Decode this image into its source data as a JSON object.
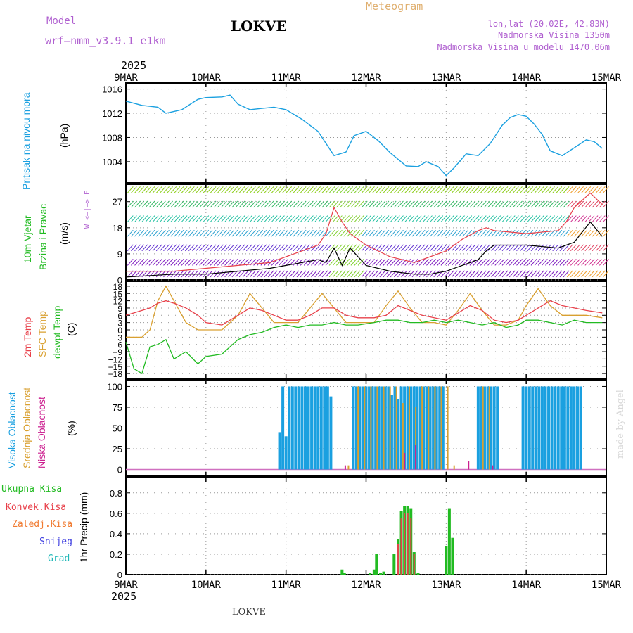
{
  "header": {
    "model_label": "Model",
    "model_name": "wrf–nmm_v3.9.1 e1km",
    "station": "LOKVE",
    "meteogram": "Meteogram",
    "lonlat": "lon,lat (20.02E, 42.83N)",
    "elevation": "Nadmorska Visina 1350m",
    "model_elevation": "Nadmorska Visina u modelu 1470.06m",
    "year": "2025",
    "footer_station": "LOKVE",
    "credit": "made by Angel"
  },
  "colors": {
    "pressure": "#1aa0e0",
    "temp2m": "#e8404a",
    "sfc": "#d9a030",
    "dewpt": "#22bb22",
    "cloud_high": "#1aa0e0",
    "cloud_mid": "#d9a030",
    "cloud_low": "#cc2090",
    "precip_total": "#22bb22",
    "precip_conv": "#e8404a",
    "precip_frz": "#f07a30",
    "snow": "#4040e0",
    "grad": "#20b8b8"
  },
  "days": [
    "9MAR",
    "10MAR",
    "11MAR",
    "12MAR",
    "13MAR",
    "14MAR",
    "15MAR"
  ],
  "panels": {
    "pressure": {
      "label": "Pritisak na nivou mora",
      "unit": "(hPa)",
      "ticks": [
        1004,
        1008,
        1012,
        1016
      ]
    },
    "wind": {
      "label1": "10m Vjetar",
      "label2": "Brzina i Pravac",
      "unit": "(m/s)",
      "ticks": [
        0,
        9,
        18,
        27
      ],
      "compass": "W <–|–> E"
    },
    "temp": {
      "label1": "2m Temp",
      "label2": "SFC Temp",
      "label3": "dewpt Temp",
      "unit": "(C)",
      "ticks": [
        -18,
        -15,
        -12,
        -9,
        -6,
        -3,
        0,
        3,
        6,
        9,
        12,
        15,
        18
      ]
    },
    "cloud": {
      "label1": "Visoka Oblacnost",
      "label2": "Srednja Oblacnost",
      "label3": "Niska Oblacnost",
      "unit": "(%)",
      "ticks": [
        0,
        25,
        50,
        75,
        100
      ]
    },
    "precip": {
      "legend": [
        "Ukupna Kisa",
        "Konvek.Kisa",
        "Zaledj.Kisa",
        "Snijeg",
        "Grad"
      ],
      "unit": "1hr Precip (mm)",
      "ticks": [
        0,
        0.2,
        0.4,
        0.6,
        0.8
      ]
    }
  },
  "chart_data": [
    {
      "type": "line",
      "title": "Pritisak na nivou mora",
      "ylabel": "(hPa)",
      "ylim": [
        1000.5,
        1017
      ],
      "x_unit": "days since 9MAR 00UTC",
      "x": [
        0,
        0.2,
        0.4,
        0.5,
        0.7,
        0.9,
        1.0,
        1.2,
        1.3,
        1.4,
        1.55,
        1.7,
        1.85,
        2.0,
        2.2,
        2.4,
        2.6,
        2.75,
        2.85,
        3.0,
        3.15,
        3.3,
        3.5,
        3.65,
        3.75,
        3.9,
        4.0,
        4.1,
        4.25,
        4.4,
        4.55,
        4.7,
        4.8,
        4.9,
        5.0,
        5.1,
        5.2,
        5.3,
        5.45,
        5.6,
        5.75,
        5.85,
        5.95
      ],
      "values": [
        1014,
        1013.3,
        1013,
        1012,
        1012.6,
        1014.3,
        1014.6,
        1014.7,
        1015,
        1013.5,
        1012.6,
        1012.8,
        1013,
        1012.6,
        1011,
        1009,
        1005,
        1005.6,
        1008.3,
        1009,
        1007.5,
        1005.5,
        1003.3,
        1003.2,
        1004,
        1003.2,
        1001.7,
        1003,
        1005.3,
        1005,
        1007,
        1010,
        1011.3,
        1011.8,
        1011.5,
        1010.2,
        1008.5,
        1005.8,
        1005,
        1006.3,
        1007.6,
        1007.3,
        1006.2
      ]
    },
    {
      "type": "line",
      "title": "10m Vjetar Brzina i Pravac",
      "ylabel": "(m/s)",
      "ylim": [
        0,
        33
      ],
      "x": [
        0,
        0.3,
        0.6,
        1.0,
        1.4,
        1.8,
        2.0,
        2.2,
        2.4,
        2.5,
        2.6,
        2.7,
        2.8,
        3.0,
        3.3,
        3.6,
        3.8,
        4.0,
        4.2,
        4.4,
        4.5,
        4.6,
        5.0,
        5.4,
        5.5,
        5.6,
        5.8,
        5.95
      ],
      "series": [
        {
          "name": "",
          "values": [
            1,
            1.5,
            2,
            2,
            3,
            4,
            5,
            6,
            7,
            6,
            11,
            5,
            11,
            5,
            3,
            2,
            2,
            3,
            5,
            7,
            10,
            12,
            12,
            11,
            12,
            13,
            20,
            15
          ]
        },
        {
          "name": "",
          "values": [
            3,
            3,
            3,
            4,
            5,
            6,
            8,
            10,
            12,
            16,
            25,
            20,
            16,
            12,
            8,
            6,
            8,
            10,
            14,
            17,
            18,
            17,
            16,
            17,
            20,
            25,
            30,
            26
          ]
        }
      ]
    },
    {
      "type": "line",
      "title": "2m Temp / SFC Temp / dewpt Temp",
      "ylabel": "(C)",
      "ylim": [
        -20,
        20
      ],
      "x": [
        0,
        0.1,
        0.2,
        0.3,
        0.4,
        0.5,
        0.6,
        0.75,
        0.9,
        1.0,
        1.2,
        1.4,
        1.55,
        1.7,
        1.85,
        2.0,
        2.15,
        2.3,
        2.45,
        2.6,
        2.75,
        2.9,
        3.1,
        3.25,
        3.4,
        3.55,
        3.7,
        3.85,
        4.0,
        4.15,
        4.3,
        4.45,
        4.6,
        4.75,
        4.9,
        5.0,
        5.15,
        5.3,
        5.45,
        5.6,
        5.75,
        5.95
      ],
      "series": [
        {
          "name": "2m Temp",
          "values": [
            6,
            7,
            8,
            9,
            11,
            12,
            11,
            9,
            6,
            3,
            2,
            6,
            9,
            8,
            6,
            4,
            4,
            6,
            9,
            9,
            6,
            5,
            5,
            6,
            10,
            8,
            6,
            5,
            4,
            7,
            10,
            8,
            4,
            3,
            4,
            6,
            9,
            12,
            10,
            9,
            8,
            7
          ]
        },
        {
          "name": "SFC Temp",
          "values": [
            -3,
            -3,
            -3,
            0,
            12,
            18,
            12,
            3,
            0,
            0,
            0,
            6,
            15,
            9,
            3,
            3,
            3,
            9,
            15,
            9,
            3,
            3,
            3,
            10,
            16,
            9,
            3,
            3,
            2,
            8,
            15,
            8,
            2,
            2,
            4,
            10,
            17,
            10,
            6,
            6,
            6,
            5
          ]
        },
        {
          "name": "dewpt Temp",
          "values": [
            -5,
            -16,
            -18,
            -7,
            -6,
            -4,
            -12,
            -9,
            -14,
            -11,
            -10,
            -4,
            -2,
            -1,
            1,
            2,
            1,
            2,
            2,
            3,
            2,
            2,
            3,
            4,
            4,
            3,
            3,
            4,
            3,
            4,
            3,
            2,
            3,
            1,
            2,
            4,
            4,
            3,
            2,
            4,
            3,
            3
          ]
        }
      ]
    },
    {
      "type": "bar",
      "title": "Visoka / Srednja / Niska Oblacnost",
      "ylabel": "(%)",
      "ylim": [
        0,
        100
      ],
      "series": [
        {
          "name": "Visoka Oblacnost",
          "x": [
            1.92,
            1.96,
            2.0,
            2.04,
            2.08,
            2.12,
            2.16,
            2.2,
            2.24,
            2.28,
            2.32,
            2.36,
            2.4,
            2.44,
            2.48,
            2.52,
            2.56,
            2.84,
            2.88,
            2.92,
            2.96,
            3.0,
            3.04,
            3.08,
            3.12,
            3.16,
            3.2,
            3.24,
            3.28,
            3.32,
            3.36,
            3.4,
            3.44,
            3.48,
            3.52,
            3.56,
            3.6,
            3.64,
            3.68,
            3.72,
            3.76,
            3.8,
            3.84,
            3.88,
            3.92,
            3.96,
            4.4,
            4.44,
            4.48,
            4.52,
            4.56,
            4.6,
            4.64,
            4.96,
            5.0,
            5.04,
            5.08,
            5.12,
            5.16,
            5.2,
            5.24,
            5.28,
            5.32,
            5.36,
            5.4,
            5.44,
            5.48,
            5.52,
            5.56,
            5.6,
            5.64,
            5.68
          ],
          "values": [
            45,
            100,
            40,
            100,
            100,
            100,
            100,
            100,
            100,
            100,
            100,
            100,
            100,
            100,
            100,
            100,
            88,
            100,
            100,
            100,
            100,
            100,
            100,
            100,
            100,
            100,
            100,
            100,
            100,
            90,
            100,
            85,
            100,
            100,
            100,
            100,
            100,
            100,
            100,
            100,
            100,
            100,
            100,
            100,
            100,
            100,
            100,
            100,
            100,
            100,
            100,
            100,
            100,
            100,
            100,
            100,
            100,
            100,
            100,
            100,
            100,
            100,
            100,
            100,
            100,
            100,
            100,
            100,
            100,
            100,
            100,
            100
          ]
        },
        {
          "name": "Srednja Oblacnost",
          "x": [
            2.78,
            2.9,
            2.98,
            3.06,
            3.14,
            3.22,
            3.3,
            3.38,
            3.46,
            3.54,
            3.62,
            3.7,
            3.78,
            3.86,
            3.94,
            4.02,
            4.1,
            4.46,
            4.54
          ],
          "values": [
            5,
            100,
            100,
            100,
            100,
            100,
            100,
            100,
            80,
            100,
            75,
            100,
            100,
            100,
            100,
            100,
            5,
            100,
            100
          ]
        },
        {
          "name": "Niska Oblacnost",
          "x": [
            2.74,
            3.48,
            3.62,
            4.28,
            4.58
          ],
          "values": [
            5,
            20,
            30,
            10,
            5
          ]
        }
      ]
    },
    {
      "type": "bar",
      "title": "1hr Precip",
      "ylabel": "1hr Precip (mm)",
      "ylim": [
        0,
        0.95
      ],
      "series": [
        {
          "name": "Ukupna Kisa",
          "x": [
            2.7,
            2.73,
            3.05,
            3.1,
            3.13,
            3.18,
            3.22,
            3.35,
            3.4,
            3.44,
            3.48,
            3.52,
            3.56,
            3.6,
            3.65,
            4.0,
            4.04,
            4.08
          ],
          "values": [
            0.05,
            0.02,
            0.02,
            0.05,
            0.2,
            0.02,
            0.03,
            0.2,
            0.35,
            0.62,
            0.67,
            0.67,
            0.65,
            0.22,
            0.02,
            0.28,
            0.65,
            0.36
          ]
        },
        {
          "name": "Konvek.Kisa",
          "x": [
            3.4,
            3.44,
            3.48,
            3.52,
            3.56,
            3.6
          ],
          "values": [
            0.3,
            0.55,
            0.6,
            0.6,
            0.55,
            0.2
          ]
        }
      ]
    }
  ]
}
